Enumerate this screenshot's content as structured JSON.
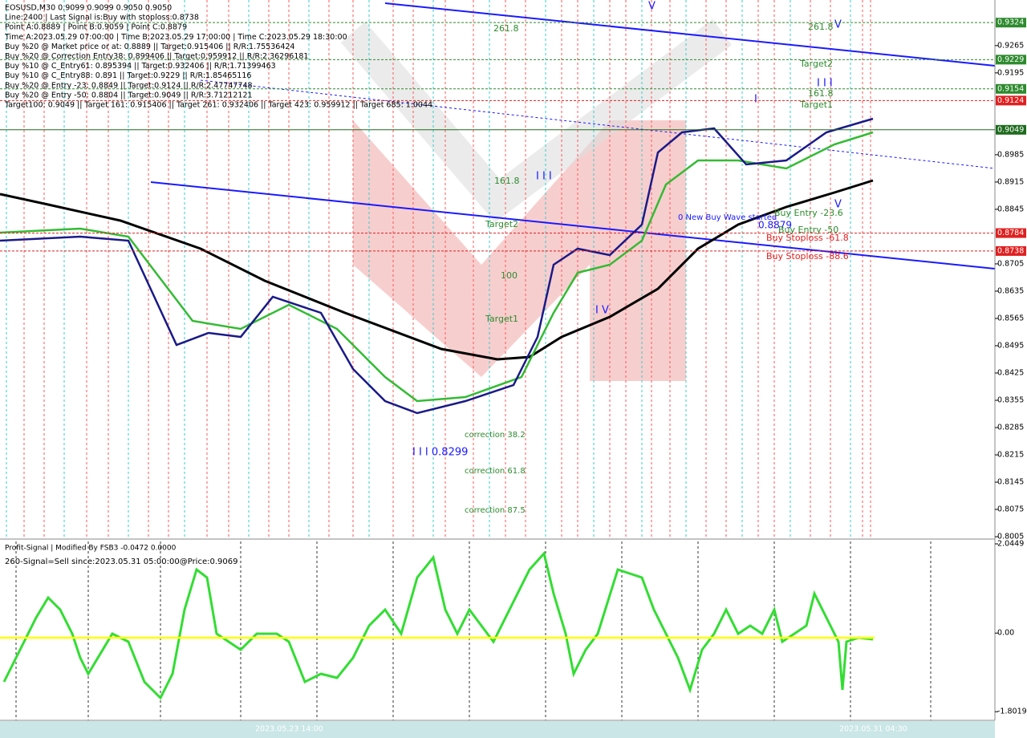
{
  "header": {
    "lines": [
      "EOSUSD,M30  0.9099 0.9099 0.9050 0.9050",
      "Line:2400 | Last Signal is:Buy with stoploss:0.8738",
      "Point A:0.8889 | Point B:0.9059 | Point C:0.8879",
      "Time A:2023.05.29 07:00:00 | Time B:2023.05.29 17:00:00 | Time C:2023.05.29 18:30:00",
      "Buy %20 @ Market price or at: 0.8889 || Target:0.915406 || R/R:1.75536424",
      "Buy %20 @ Correction Entry38: 0.899406 || Target:0.959912 || R/R:2.36296181",
      "Buy %10 @ C_Entry61: 0.895394 || Target:0.932406 || R/R:1.71399463",
      "Buy %10 @ C_Entry88: 0.891 || Target:0.9229 || R/R:1.85465116",
      "Buy %20 @ Entry -23: 0.8849 || Target:0.9124 || R/R:2.47747748",
      "Buy %20 @ Entry -50: 0.8804 || Target:0.9049 || R/R:3.71212121",
      "Target100: 0.9049 || Target 161: 0.915406 || Target 261: 0.932406 || Target 423: 0.959912 || Target 685: 1.0044"
    ]
  },
  "annotations": [
    "261.8",
    "261.8",
    "Target2",
    "161.8",
    "Target1",
    "161.8",
    "Target2",
    "100",
    "Target1",
    "correction 38.2",
    "correction 61.8",
    "correction 87.5",
    "I I I 0.8299",
    "0 New Buy Wave started",
    "0.8879",
    "Buy Entry -23.6",
    "Buy Entry -50",
    "Buy Stoploss -61.8",
    "Buy Stoploss -88.6",
    "I V",
    "V",
    "V",
    "I I I",
    "I",
    "I I I",
    "V"
  ],
  "price_axis": {
    "ylim": [
      0.7999,
      0.9382
    ],
    "ticks": [
      0.9265,
      0.9195,
      0.8985,
      0.8915,
      0.8845,
      0.8705,
      0.8635,
      0.8565,
      0.8495,
      0.8425,
      0.8355,
      0.8285,
      0.8215,
      0.8145,
      0.8075,
      0.8005
    ],
    "levels": [
      {
        "value": 0.9324,
        "color": "#2e8b2e"
      },
      {
        "value": 0.9229,
        "color": "#2e8b2e"
      },
      {
        "value": 0.9154,
        "color": "#2e8b2e"
      },
      {
        "value": 0.9124,
        "color": "#e02020"
      },
      {
        "value": 0.9049,
        "color": "#1e6b1e"
      },
      {
        "value": 0.8784,
        "color": "#e02020"
      },
      {
        "value": 0.8738,
        "color": "#e02020"
      }
    ]
  },
  "indicator": {
    "lines": [
      "Profit-Signal | Modified By FSB3 -0.0472 0.0000",
      "260-Signal=Sell since:2023.05.31 05:00:00@Price:0.9069"
    ],
    "ylim": [
      -2.0,
      2.1
    ],
    "yticks": [
      2.0449,
      {
        "value": 0,
        "label": "0.00"
      },
      -1.8019
    ]
  },
  "time_axis": {
    "labels": [
      "2023.05.23 14:00",
      "2023.05.31 04:30"
    ]
  }
}
